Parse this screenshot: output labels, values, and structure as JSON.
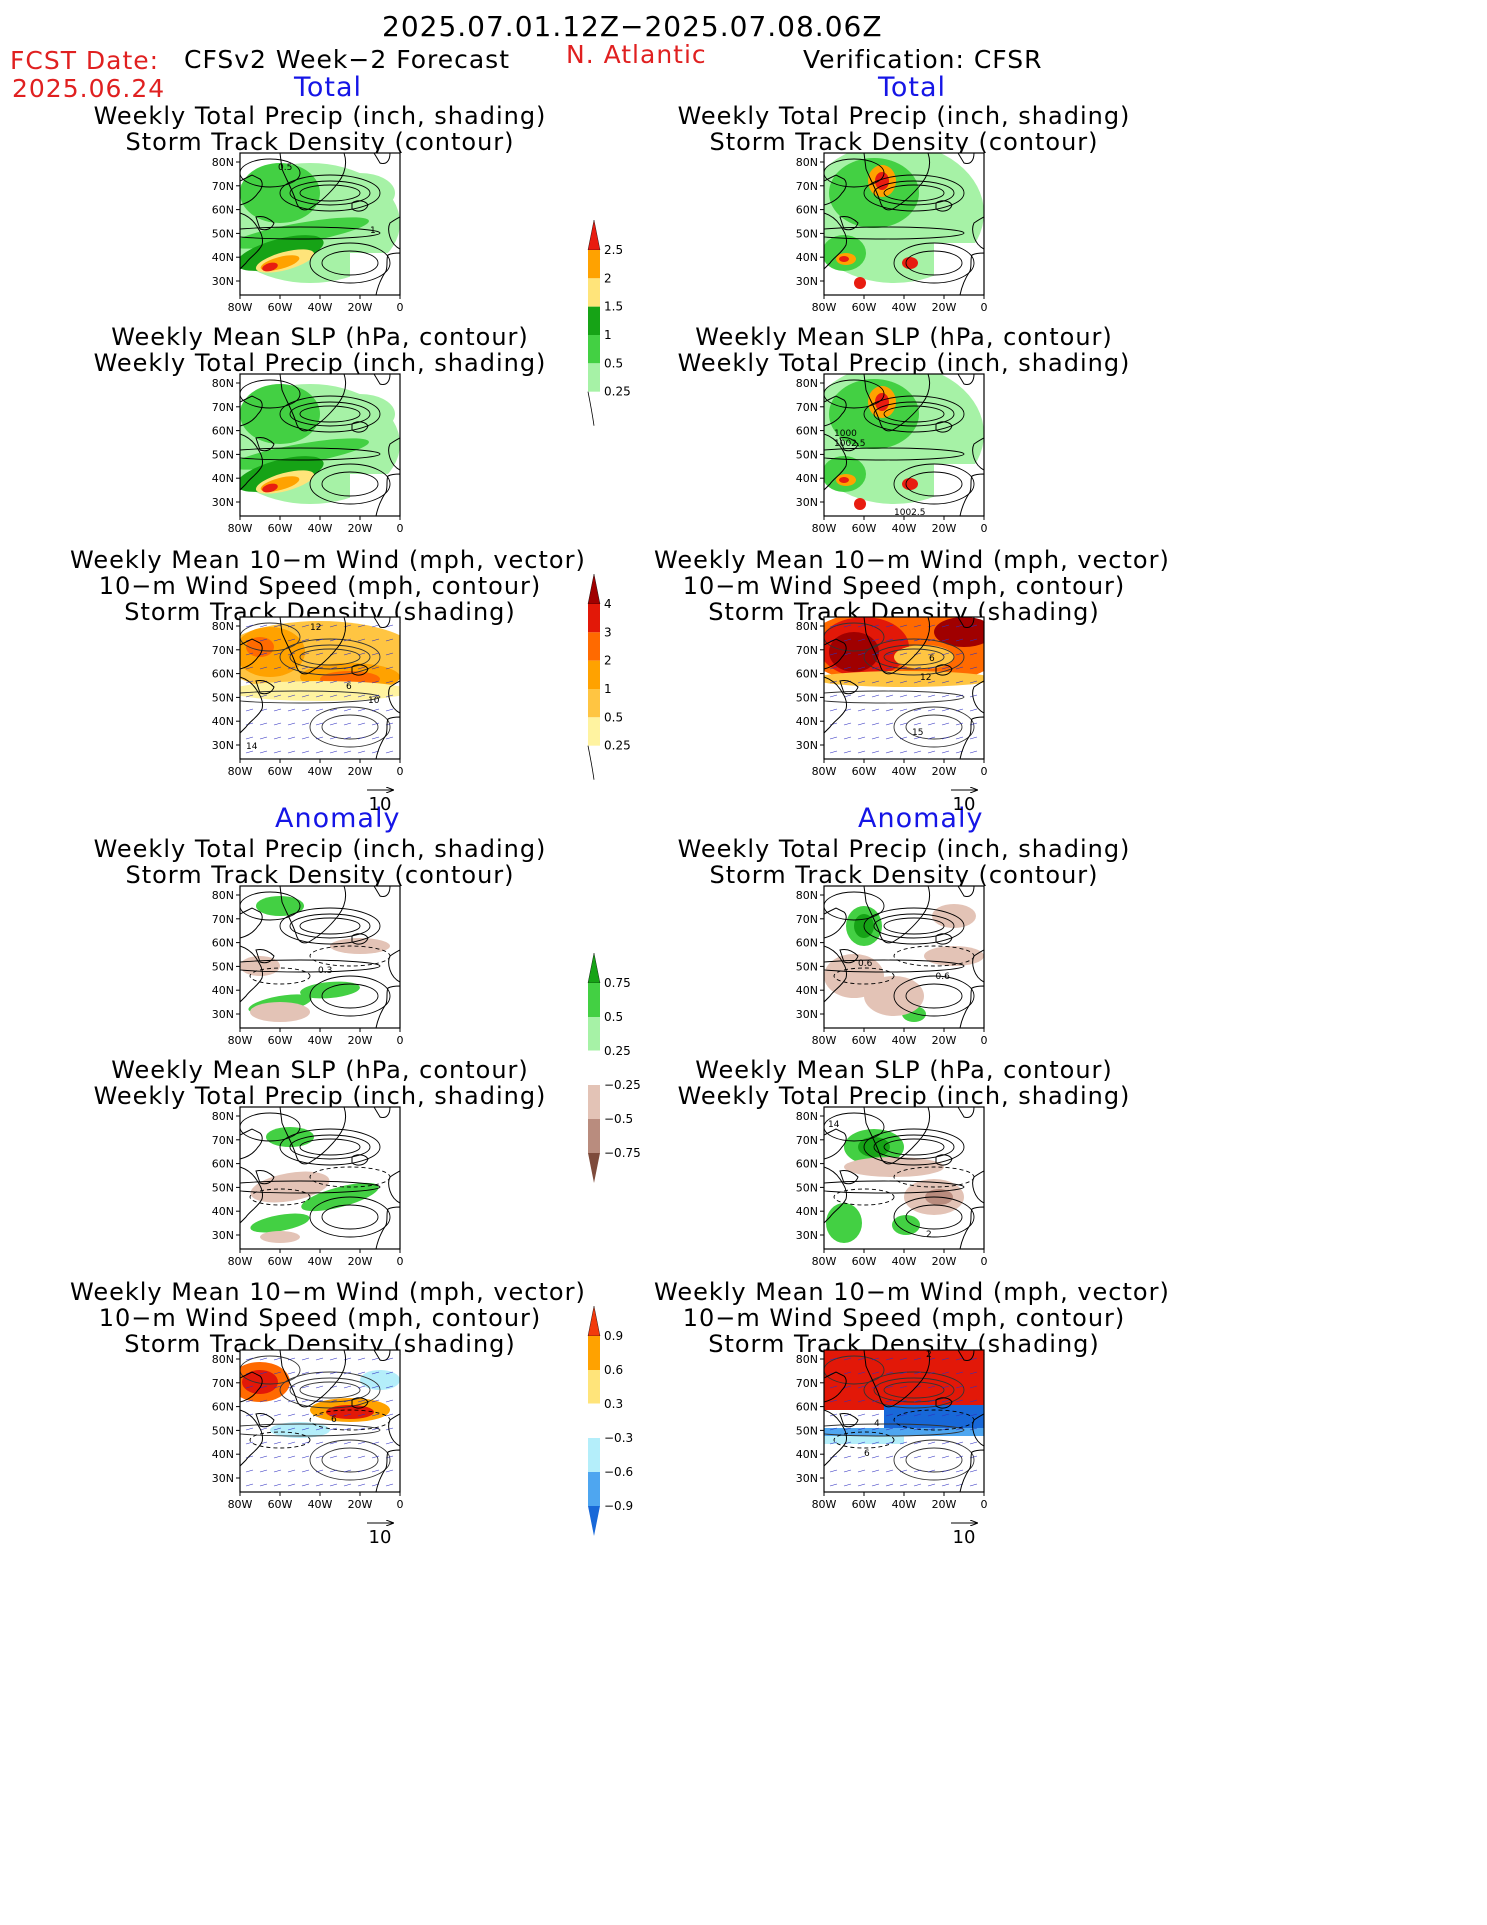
{
  "header": {
    "period": "2025.07.01.12Z−2025.07.08.06Z",
    "fcst_label": "FCST Date:",
    "fcst_date": "2025.06.24",
    "model": "CFSv2 Week−2 Forecast",
    "region": "N. Atlantic",
    "verification": "Verification: CFSR"
  },
  "sections": {
    "total": "Total",
    "anomaly": "Anomaly"
  },
  "titles": {
    "precip_storm": [
      "Weekly Total Precip (inch, shading)",
      "Storm Track Density (contour)"
    ],
    "slp_precip": [
      "Weekly Mean SLP (hPa, contour)",
      "Weekly Total Precip (inch, shading)"
    ],
    "wind_storm": [
      "Weekly Mean 10−m Wind (mph, vector)",
      "10−m Wind Speed (mph, contour)",
      "Storm Track Density (shading)"
    ]
  },
  "axes": {
    "lat": [
      "80N",
      "70N",
      "60N",
      "50N",
      "40N",
      "30N"
    ],
    "lon": [
      "80W",
      "60W",
      "40W",
      "20W",
      "0"
    ]
  },
  "vector_ref": "10",
  "colorbars": {
    "precip_total": {
      "labels": [
        "2.5",
        "2",
        "1.5",
        "1",
        "0.5",
        "0.25"
      ],
      "colors": [
        "#e81c10",
        "#ffa200",
        "#ffe47a",
        "#16a316",
        "#43d043",
        "#a6f2a6"
      ]
    },
    "storm_total": {
      "labels": [
        "4",
        "3",
        "2",
        "1",
        "0.5",
        "0.25"
      ],
      "colors": [
        "#a00000",
        "#e21808",
        "#ff6a00",
        "#ffa200",
        "#ffc542",
        "#fff3a0"
      ]
    },
    "precip_anom": {
      "labels": [
        "0.75",
        "0.5",
        "0.25",
        "−0.25",
        "−0.5",
        "−0.75"
      ],
      "colors": [
        "#16a316",
        "#43d043",
        "#a6f2a6",
        "#ffffff",
        "#e3c3b6",
        "#b98c7e",
        "#7e4b3c"
      ]
    },
    "storm_anom": {
      "labels": [
        "0.9",
        "0.6",
        "0.3",
        "−0.3",
        "−0.6",
        "−0.9"
      ],
      "colors": [
        "#f23a0c",
        "#ffa200",
        "#ffe47a",
        "#ffffff",
        "#b4eefa",
        "#4ea6f0",
        "#1868d8"
      ]
    }
  },
  "contour_labels": {
    "fcst_total_precip": [
      "0.5",
      "1"
    ],
    "fcst_total_wind": [
      "12",
      "6",
      "10",
      "14"
    ],
    "cfsr_total_slp": [
      "1000",
      "1002.5",
      "1002.5"
    ],
    "cfsr_total_wind": [
      "6",
      "12",
      "15"
    ],
    "fcst_anom_precip": [
      "0.3"
    ],
    "cfsr_anom_precip": [
      "0.6",
      "−0.6"
    ],
    "cfsr_anom_slp": [
      "14",
      "2"
    ],
    "fcst_anom_wind": [
      "6"
    ],
    "cfsr_anom_wind": [
      "2",
      "4",
      "6"
    ]
  }
}
